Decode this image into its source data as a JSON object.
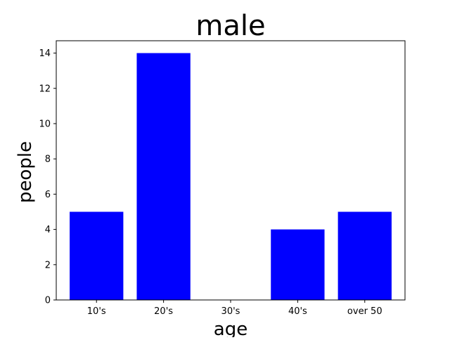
{
  "chart_data": {
    "type": "bar",
    "title": "male",
    "xlabel": "age",
    "ylabel": "people",
    "categories": [
      "10's",
      "20's",
      "30's",
      "40's",
      "over 50"
    ],
    "values": [
      5,
      14,
      0,
      4,
      5
    ],
    "ylim": [
      0,
      14.7
    ],
    "yticks": [
      "0",
      "2",
      "4",
      "6",
      "8",
      "10",
      "12",
      "14"
    ],
    "bar_color": "#0000ff",
    "grid": false,
    "legend": "none"
  }
}
